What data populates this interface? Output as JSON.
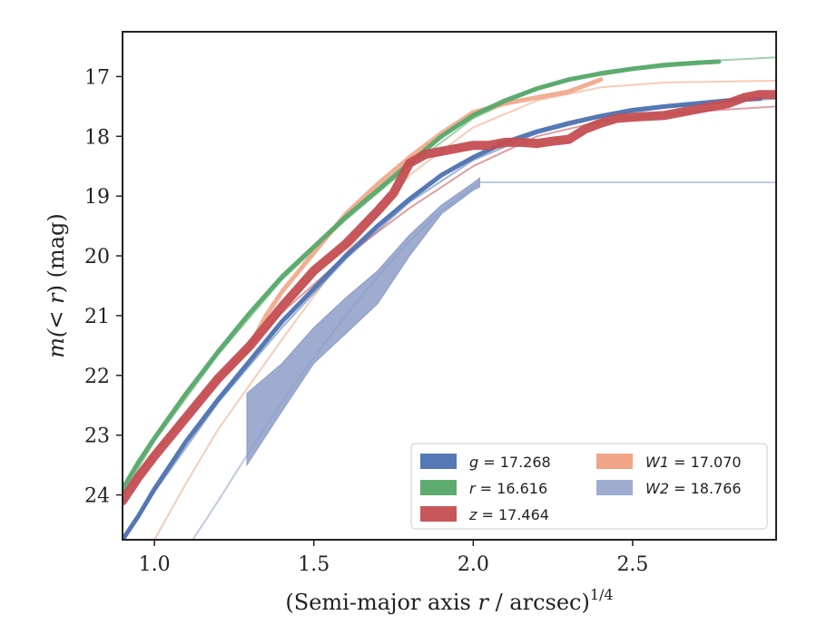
{
  "chart_data": {
    "type": "line",
    "xlabel": "(Semi-major axis r / arcsec)",
    "xlabel_var": "r",
    "xlabel_pre": "(Semi-major axis ",
    "xlabel_post": " / arcsec)",
    "xlabel_exp": "1/4",
    "ylabel_pre": "m(",
    "ylabel_mid": "< r",
    "ylabel_post": ") (mag)",
    "xlim": [
      0.9,
      2.95
    ],
    "ylim": [
      24.75,
      16.25
    ],
    "y_inverted": true,
    "xticks": [
      1.0,
      1.5,
      2.0,
      2.5
    ],
    "xtick_labels": [
      "1.0",
      "1.5",
      "2.0",
      "2.5"
    ],
    "yticks": [
      17,
      18,
      19,
      20,
      21,
      22,
      23,
      24
    ],
    "ytick_labels": [
      "17",
      "18",
      "19",
      "20",
      "21",
      "22",
      "23",
      "24"
    ],
    "grid": false,
    "legend_position": "bottom-right",
    "legend_columns": 2,
    "series": [
      {
        "key": "g",
        "name": "g = 17.268",
        "var": "g",
        "value": "17.268",
        "color": "#4c72b0",
        "points": [
          [
            0.9,
            24.75
          ],
          [
            0.95,
            24.35
          ],
          [
            1.0,
            23.9
          ],
          [
            1.1,
            23.1
          ],
          [
            1.2,
            22.4
          ],
          [
            1.3,
            21.75
          ],
          [
            1.4,
            21.1
          ],
          [
            1.5,
            20.55
          ],
          [
            1.6,
            20.0
          ],
          [
            1.7,
            19.5
          ],
          [
            1.8,
            19.05
          ],
          [
            1.9,
            18.65
          ],
          [
            2.0,
            18.35
          ],
          [
            2.1,
            18.1
          ],
          [
            2.2,
            17.92
          ],
          [
            2.3,
            17.78
          ],
          [
            2.4,
            17.66
          ],
          [
            2.5,
            17.56
          ],
          [
            2.6,
            17.5
          ],
          [
            2.7,
            17.45
          ],
          [
            2.8,
            17.4
          ],
          [
            2.9,
            17.37
          ]
        ],
        "model": [
          [
            0.9,
            24.75
          ],
          [
            1.0,
            23.95
          ],
          [
            1.2,
            22.45
          ],
          [
            1.4,
            21.2
          ],
          [
            1.6,
            20.05
          ],
          [
            1.8,
            19.1
          ],
          [
            2.0,
            18.4
          ],
          [
            2.2,
            17.95
          ],
          [
            2.4,
            17.68
          ],
          [
            2.6,
            17.52
          ],
          [
            2.8,
            17.42
          ],
          [
            2.95,
            17.37
          ]
        ],
        "width": 5
      },
      {
        "key": "r",
        "name": "r = 16.616",
        "var": "r",
        "value": "16.616",
        "color": "#55a868",
        "points": [
          [
            0.9,
            23.9
          ],
          [
            0.95,
            23.45
          ],
          [
            1.0,
            23.05
          ],
          [
            1.1,
            22.3
          ],
          [
            1.2,
            21.6
          ],
          [
            1.3,
            20.95
          ],
          [
            1.4,
            20.35
          ],
          [
            1.5,
            19.85
          ],
          [
            1.6,
            19.35
          ],
          [
            1.7,
            18.9
          ],
          [
            1.8,
            18.45
          ],
          [
            1.9,
            18.0
          ],
          [
            2.0,
            17.65
          ],
          [
            2.1,
            17.4
          ],
          [
            2.2,
            17.2
          ],
          [
            2.3,
            17.05
          ],
          [
            2.4,
            16.95
          ],
          [
            2.5,
            16.87
          ],
          [
            2.6,
            16.81
          ],
          [
            2.7,
            16.77
          ],
          [
            2.77,
            16.75
          ]
        ],
        "model": [
          [
            0.9,
            24.0
          ],
          [
            1.0,
            23.1
          ],
          [
            1.2,
            21.65
          ],
          [
            1.4,
            20.4
          ],
          [
            1.6,
            19.4
          ],
          [
            1.8,
            18.5
          ],
          [
            2.0,
            17.7
          ],
          [
            2.2,
            17.2
          ],
          [
            2.4,
            16.92
          ],
          [
            2.6,
            16.78
          ],
          [
            2.8,
            16.72
          ],
          [
            2.95,
            16.68
          ]
        ],
        "width": 5
      },
      {
        "key": "z",
        "name": "z = 17.464",
        "var": "z",
        "value": "17.464",
        "color": "#c44e52",
        "points": [
          [
            0.9,
            24.1
          ],
          [
            0.95,
            23.7
          ],
          [
            1.0,
            23.35
          ],
          [
            1.1,
            22.7
          ],
          [
            1.2,
            22.05
          ],
          [
            1.3,
            21.5
          ],
          [
            1.4,
            20.85
          ],
          [
            1.5,
            20.25
          ],
          [
            1.6,
            19.8
          ],
          [
            1.7,
            19.25
          ],
          [
            1.75,
            18.95
          ],
          [
            1.8,
            18.45
          ],
          [
            1.85,
            18.3
          ],
          [
            1.9,
            18.25
          ],
          [
            1.95,
            18.2
          ],
          [
            2.0,
            18.15
          ],
          [
            2.05,
            18.15
          ],
          [
            2.1,
            18.1
          ],
          [
            2.15,
            18.1
          ],
          [
            2.2,
            18.12
          ],
          [
            2.25,
            18.08
          ],
          [
            2.3,
            18.05
          ],
          [
            2.33,
            17.95
          ],
          [
            2.35,
            17.88
          ],
          [
            2.4,
            17.78
          ],
          [
            2.45,
            17.7
          ],
          [
            2.5,
            17.68
          ],
          [
            2.6,
            17.65
          ],
          [
            2.7,
            17.55
          ],
          [
            2.8,
            17.45
          ],
          [
            2.85,
            17.35
          ],
          [
            2.9,
            17.3
          ],
          [
            2.95,
            17.3
          ]
        ],
        "model": [
          [
            0.9,
            24.0
          ],
          [
            1.0,
            23.3
          ],
          [
            1.2,
            22.05
          ],
          [
            1.4,
            20.95
          ],
          [
            1.6,
            20.0
          ],
          [
            1.8,
            19.2
          ],
          [
            2.0,
            18.5
          ],
          [
            2.2,
            18.0
          ],
          [
            2.4,
            17.75
          ],
          [
            2.6,
            17.62
          ],
          [
            2.8,
            17.55
          ],
          [
            2.95,
            17.5
          ]
        ],
        "width": 10
      },
      {
        "key": "W1",
        "name": "W1 = 17.070",
        "var": "W1",
        "value": "17.070",
        "color": "#f0a080",
        "points": [
          [
            1.29,
            21.6
          ],
          [
            1.35,
            21.0
          ],
          [
            1.4,
            20.6
          ],
          [
            1.5,
            19.95
          ],
          [
            1.6,
            19.3
          ],
          [
            1.7,
            18.8
          ],
          [
            1.8,
            18.35
          ],
          [
            1.9,
            17.95
          ],
          [
            2.0,
            17.6
          ],
          [
            2.1,
            17.45
          ],
          [
            2.2,
            17.35
          ],
          [
            2.3,
            17.25
          ],
          [
            2.4,
            17.05
          ]
        ],
        "model": [
          [
            1.0,
            24.75
          ],
          [
            1.1,
            23.8
          ],
          [
            1.2,
            22.9
          ],
          [
            1.4,
            21.4
          ],
          [
            1.6,
            19.95
          ],
          [
            1.8,
            18.65
          ],
          [
            2.0,
            17.85
          ],
          [
            2.2,
            17.4
          ],
          [
            2.4,
            17.18
          ],
          [
            2.6,
            17.1
          ],
          [
            2.8,
            17.08
          ],
          [
            2.95,
            17.07
          ]
        ],
        "width": 5
      },
      {
        "key": "W2",
        "name": "W2 = 18.766",
        "var": "W2",
        "value": "18.766",
        "color": "#8d9dc8",
        "band_upper": [
          [
            1.29,
            22.3
          ],
          [
            1.4,
            21.8
          ],
          [
            1.5,
            21.2
          ],
          [
            1.6,
            20.7
          ],
          [
            1.7,
            20.25
          ],
          [
            1.8,
            19.65
          ],
          [
            1.9,
            19.15
          ],
          [
            2.0,
            18.78
          ],
          [
            2.02,
            18.7
          ]
        ],
        "band_lower": [
          [
            1.29,
            23.5
          ],
          [
            1.4,
            22.6
          ],
          [
            1.5,
            21.8
          ],
          [
            1.6,
            21.3
          ],
          [
            1.7,
            20.8
          ],
          [
            1.8,
            20.0
          ],
          [
            1.9,
            19.3
          ],
          [
            2.0,
            18.9
          ],
          [
            2.02,
            18.85
          ]
        ],
        "model": [
          [
            1.12,
            24.75
          ],
          [
            1.2,
            24.1
          ],
          [
            1.3,
            23.25
          ],
          [
            1.4,
            22.45
          ],
          [
            1.5,
            21.7
          ],
          [
            1.6,
            21.0
          ],
          [
            1.7,
            20.35
          ],
          [
            1.8,
            19.75
          ],
          [
            1.9,
            19.25
          ],
          [
            2.0,
            18.85
          ],
          [
            2.02,
            18.77
          ],
          [
            2.95,
            18.77
          ]
        ],
        "width": 5
      }
    ]
  }
}
